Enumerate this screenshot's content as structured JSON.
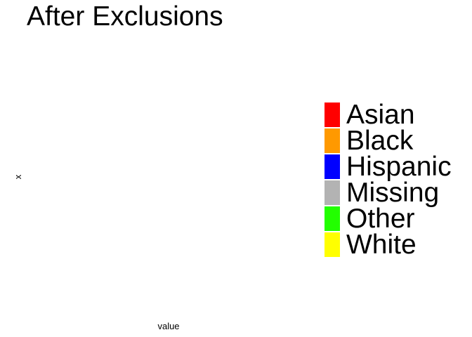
{
  "chart_data": {
    "type": "bar",
    "title": "After Exclusions",
    "xlabel": "value",
    "ylabel": "x",
    "categories": [],
    "series": [
      {
        "name": "Asian",
        "values": [],
        "color": "#ff0000"
      },
      {
        "name": "Black",
        "values": [],
        "color": "#ff9900"
      },
      {
        "name": "Hispanic",
        "values": [],
        "color": "#0000ff"
      },
      {
        "name": "Missing",
        "values": [],
        "color": "#b3b3b3"
      },
      {
        "name": "Other",
        "values": [],
        "color": "#22ff00"
      },
      {
        "name": "White",
        "values": [],
        "color": "#ffff00"
      }
    ],
    "grid": false,
    "legend_position": "right",
    "legend": [
      {
        "label": "Asian",
        "color": "#ff0000"
      },
      {
        "label": "Black",
        "color": "#ff9900"
      },
      {
        "label": "Hispanic",
        "color": "#0000ff"
      },
      {
        "label": "Missing",
        "color": "#b3b3b3"
      },
      {
        "label": "Other",
        "color": "#22ff00"
      },
      {
        "label": "White",
        "color": "#ffff00"
      }
    ]
  }
}
